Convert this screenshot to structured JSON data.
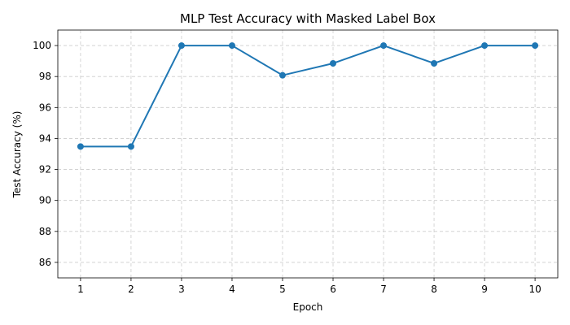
{
  "chart_data": {
    "type": "line",
    "title": "MLP Test Accuracy with Masked Label Box",
    "xlabel": "Epoch",
    "ylabel": "Test Accuracy (%)",
    "x": [
      1,
      2,
      3,
      4,
      5,
      6,
      7,
      8,
      9,
      10
    ],
    "series": [
      {
        "values": [
          93.48,
          93.48,
          100.0,
          100.0,
          98.08,
          98.85,
          100.0,
          98.85,
          100.0,
          100.0
        ],
        "color": "#1f77b4",
        "marker": "circle"
      }
    ],
    "xticks": [
      1,
      2,
      3,
      4,
      5,
      6,
      7,
      8,
      9,
      10
    ],
    "yticks": [
      86,
      88,
      90,
      92,
      94,
      96,
      98,
      100
    ],
    "xlim": [
      0.55,
      10.45
    ],
    "ylim": [
      85.0,
      101.0
    ],
    "grid": true,
    "legend": "none"
  }
}
